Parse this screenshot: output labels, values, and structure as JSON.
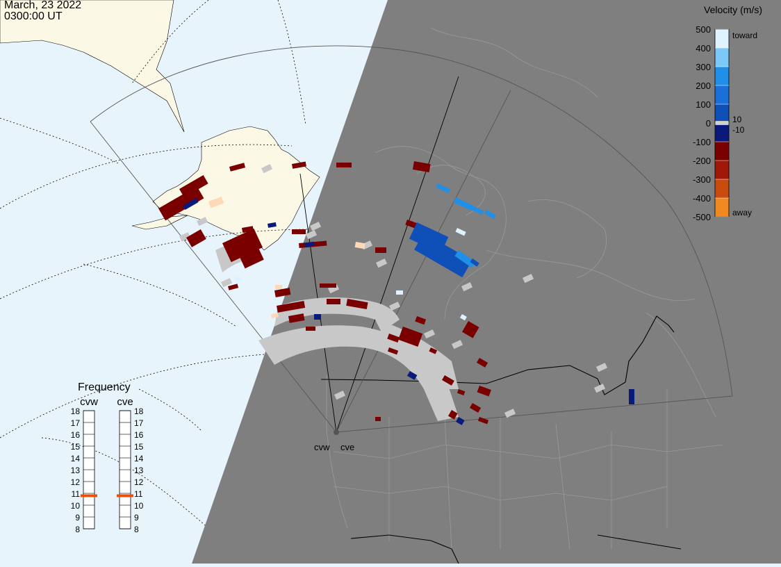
{
  "header": {
    "date": "March, 23 2022",
    "time": "0300:00 UT"
  },
  "velocity_scale": {
    "title": "Velocity (m/s)",
    "ticks": [
      "500",
      "400",
      "300",
      "200",
      "100",
      "0",
      "-100",
      "-200",
      "-300",
      "-400",
      "-500"
    ],
    "extra_labels": {
      "toward": "toward",
      "away": "away",
      "plus10": "10",
      "minus10": "-10"
    },
    "colors": {
      "toward_max": "#dff2ff",
      "toward_mid": "#1f8fe8",
      "toward_low": "#0f4fb8",
      "toward_min": "#0a1a7a",
      "away_min": "#7a0000",
      "away_mid": "#c84a0c",
      "away_high": "#f08a20",
      "away_max": "#ffd8b8",
      "ground_scatter": "#c8c8c8"
    }
  },
  "frequency_panel": {
    "title": "Frequency",
    "radars": [
      {
        "name": "cvw",
        "frequency_mhz": 10.8
      },
      {
        "name": "cve",
        "frequency_mhz": 10.8
      }
    ],
    "scale_labels": [
      "18",
      "17",
      "16",
      "15",
      "14",
      "13",
      "12",
      "11",
      "10",
      "9",
      "8"
    ]
  },
  "map": {
    "radar_labels": [
      "cvw",
      "cve"
    ],
    "colors": {
      "ocean": "#e8f4fc",
      "land": "#fcf8e6",
      "night": "#7f7f7f",
      "night_lines": "#9a9a9a",
      "border": "#000000"
    }
  }
}
